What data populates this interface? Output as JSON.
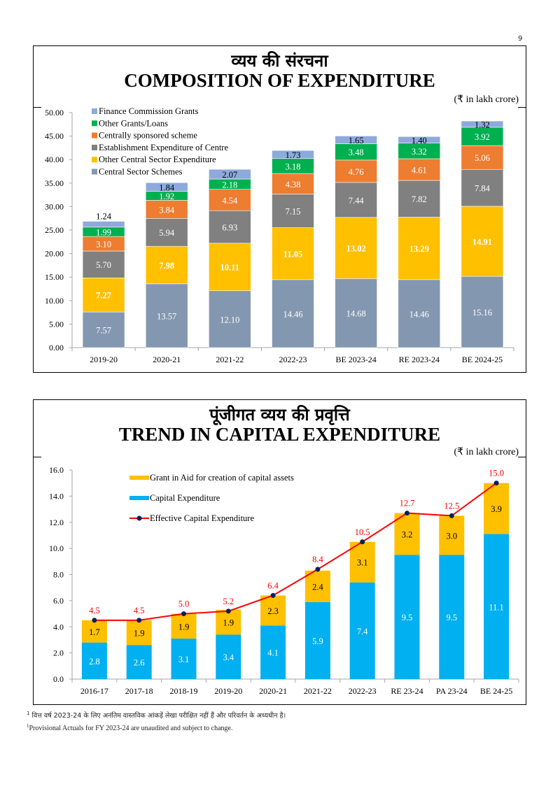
{
  "page_number": "9",
  "footnotes": {
    "marker": "1",
    "hindi": "वित्त वर्ष 2023-24 के लिए अनंतिम वास्तविक आंकड़ें लेखा परीक्षित नहीं हैं और परिवर्तन के अध्यधीन है।",
    "english": "Provisional Actuals for FY 2023-24 are unaudited and subject to change."
  },
  "colors": {
    "finance_commission_grants": "#8EA9DB",
    "other_grants_loans": "#00B050",
    "centrally_sponsored": "#ED7D31",
    "establishment": "#808080",
    "other_central_sector": "#FFC000",
    "central_sector_schemes": "#8497B0",
    "grant_in_aid": "#FFC000",
    "capital_expenditure": "#00B0F0",
    "effective_line": "#FF0000",
    "effective_marker": "#002060"
  },
  "chart_data": [
    {
      "type": "bar",
      "stacked": true,
      "title_hindi": "व्यय की संरचना",
      "title": "COMPOSITION OF EXPENDITURE",
      "unit_label": "(₹ in lakh crore)",
      "xlabel": "",
      "ylabel": "",
      "ylim": [
        0,
        50
      ],
      "yticks": [
        "0.00",
        "5.00",
        "10.00",
        "15.00",
        "20.00",
        "25.00",
        "30.00",
        "35.00",
        "40.00",
        "45.00",
        "50.00"
      ],
      "grid": false,
      "legend_position": "top-left",
      "categories": [
        "2019-20",
        "2020-21",
        "2021-22",
        "2022-23",
        "BE 2023-24",
        "RE 2023-24",
        "BE 2024-25"
      ],
      "series": [
        {
          "name": "Central Sector Schemes",
          "color_key": "central_sector_schemes",
          "label_color": "#ffffff",
          "bold": false,
          "values": [
            7.57,
            13.57,
            12.1,
            14.46,
            14.68,
            14.46,
            15.16
          ]
        },
        {
          "name": "Other Central Sector Expenditure",
          "color_key": "other_central_sector",
          "label_color": "#ffffff",
          "bold": true,
          "values": [
            7.27,
            7.98,
            10.11,
            11.05,
            13.02,
            13.29,
            14.91
          ]
        },
        {
          "name": "Establishment Expenditure of Centre",
          "color_key": "establishment",
          "label_color": "#ffffff",
          "bold": false,
          "values": [
            5.7,
            5.94,
            6.93,
            7.15,
            7.44,
            7.82,
            7.84
          ]
        },
        {
          "name": "Centrally sponsored scheme",
          "color_key": "centrally_sponsored",
          "label_color": "#ffffff",
          "bold": false,
          "values": [
            3.1,
            3.84,
            4.54,
            4.38,
            4.76,
            4.61,
            5.06
          ]
        },
        {
          "name": "Other Grants/Loans",
          "color_key": "other_grants_loans",
          "label_color": "#ffffff",
          "bold": false,
          "values": [
            1.99,
            1.92,
            2.18,
            3.18,
            3.48,
            3.32,
            3.92
          ]
        },
        {
          "name": "Finance Commission Grants",
          "color_key": "finance_commission_grants",
          "label_color": "#000000",
          "bold": false,
          "values": [
            1.24,
            1.84,
            2.07,
            1.73,
            1.65,
            1.4,
            1.32
          ]
        }
      ],
      "legend_order": [
        "Finance Commission Grants",
        "Other Grants/Loans",
        "Centrally sponsored scheme",
        "Establishment Expenditure of Centre",
        "Other Central Sector Expenditure",
        "Central Sector Schemes"
      ]
    },
    {
      "type": "bar",
      "stacked": true,
      "title_hindi": "पूंजीगत व्यय की प्रवृत्ति",
      "title": "TREND IN CAPITAL EXPENDITURE",
      "unit_label": "(₹ in lakh crore)",
      "xlabel": "",
      "ylabel": "",
      "ylim": [
        0,
        16
      ],
      "yticks": [
        "0.0",
        "2.0",
        "4.0",
        "6.0",
        "8.0",
        "10.0",
        "12.0",
        "14.0",
        "16.0"
      ],
      "grid": false,
      "legend_position": "top-left",
      "categories": [
        "2016-17",
        "2017-18",
        "2018-19",
        "2019-20",
        "2020-21",
        "2021-22",
        "2022-23",
        "RE 23-24",
        "PA 23-24",
        "BE 24-25"
      ],
      "series": [
        {
          "name": "Capital Expenditure",
          "type": "bar",
          "color_key": "capital_expenditure",
          "label_color": "#ffffff",
          "values": [
            2.8,
            2.6,
            3.1,
            3.4,
            4.1,
            5.9,
            7.4,
            9.5,
            9.5,
            11.1
          ]
        },
        {
          "name": "Grant in Aid for creation of capital assets",
          "type": "bar",
          "color_key": "grant_in_aid",
          "label_color": "#000000",
          "values": [
            1.7,
            1.9,
            1.9,
            1.9,
            2.3,
            2.4,
            3.1,
            3.2,
            3.0,
            3.9
          ]
        },
        {
          "name": "Effective Capital Expenditure",
          "type": "line",
          "color_key": "effective_line",
          "label_color": "#FF0000",
          "values": [
            4.5,
            4.5,
            5.0,
            5.2,
            6.4,
            8.4,
            10.5,
            12.7,
            12.5,
            15.0
          ]
        }
      ],
      "legend_order": [
        "Grant in Aid for creation of capital assets",
        "Capital Expenditure",
        "Effective Capital Expenditure"
      ]
    }
  ]
}
